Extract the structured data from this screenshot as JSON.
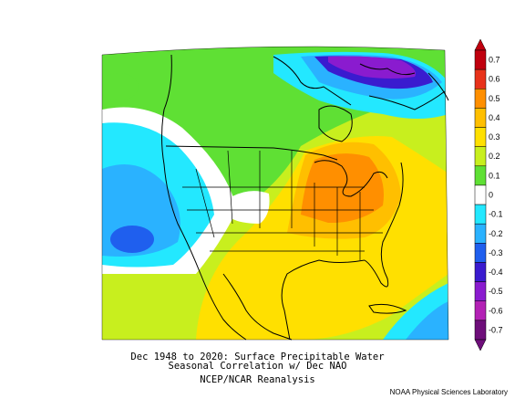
{
  "colors": {
    "ocean": "#ffffff",
    "levels": [
      {
        "value": 0.7,
        "color": "#c0000e"
      },
      {
        "value": 0.6,
        "color": "#e8321a"
      },
      {
        "value": 0.5,
        "color": "#ff8f00"
      },
      {
        "value": 0.4,
        "color": "#ffbf00"
      },
      {
        "value": 0.3,
        "color": "#ffe000"
      },
      {
        "value": 0.2,
        "color": "#c8ef1e"
      },
      {
        "value": 0.1,
        "color": "#5fe034"
      },
      {
        "value": 0,
        "color": "#ffffff"
      },
      {
        "value": -0.1,
        "color": "#23e8ff"
      },
      {
        "value": -0.2,
        "color": "#2ab2ff"
      },
      {
        "value": -0.3,
        "color": "#1f5fee"
      },
      {
        "value": -0.4,
        "color": "#3a1bcf"
      },
      {
        "value": -0.5,
        "color": "#8a1bcf"
      },
      {
        "value": -0.6,
        "color": "#b321b5"
      },
      {
        "value": -0.7,
        "color": "#6e0e7a"
      }
    ]
  },
  "colorbar": {
    "labels": [
      "0.7",
      "0.6",
      "0.5",
      "0.4",
      "0.3",
      "0.2",
      "0.1",
      "0",
      "-0.1",
      "-0.2",
      "-0.3",
      "-0.4",
      "-0.5",
      "-0.6",
      "-0.7"
    ]
  },
  "caption": {
    "line1": "Dec 1948 to 2020: Surface Precipitable Water",
    "line2": "Seasonal Correlation w/ Dec NAO",
    "line3": "NCEP/NCAR Reanalysis"
  },
  "credit": "NOAA Physical Sciences Laboratory"
}
